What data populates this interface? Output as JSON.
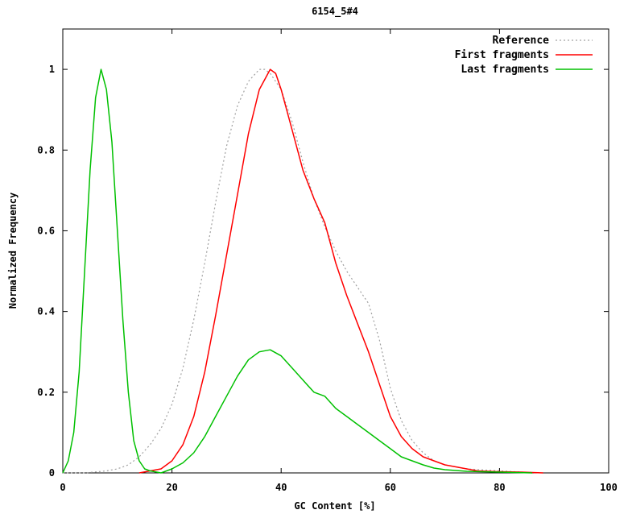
{
  "chart_data": {
    "type": "line",
    "title": "6154_5#4",
    "xlabel": "GC Content [%]",
    "ylabel": "Normalized Frequency",
    "xlim": [
      0,
      100
    ],
    "ylim": [
      0,
      1.1
    ],
    "x_ticks": [
      0,
      20,
      40,
      60,
      80,
      100
    ],
    "y_ticks": [
      0,
      0.2,
      0.4,
      0.6,
      0.8,
      1
    ],
    "x_tick_labels": [
      "0",
      "20",
      "40",
      "60",
      "80",
      "100"
    ],
    "y_tick_labels": [
      "0",
      "0.2",
      "0.4",
      "0.6",
      "0.8",
      "1"
    ],
    "grid": false,
    "legend_position": "top-right",
    "series": [
      {
        "name": "Reference",
        "color": "#a0a0a0",
        "style": "dotted",
        "x": [
          0,
          4,
          8,
          10,
          12,
          14,
          16,
          18,
          20,
          22,
          24,
          26,
          28,
          30,
          32,
          34,
          36,
          37,
          38,
          40,
          42,
          44,
          46,
          48,
          50,
          52,
          54,
          56,
          58,
          60,
          62,
          64,
          66,
          68,
          70,
          74,
          80,
          84,
          88
        ],
        "y": [
          0.0,
          0.0,
          0.005,
          0.01,
          0.02,
          0.04,
          0.07,
          0.11,
          0.17,
          0.26,
          0.38,
          0.52,
          0.67,
          0.81,
          0.91,
          0.97,
          1.0,
          1.0,
          0.99,
          0.95,
          0.87,
          0.77,
          0.68,
          0.61,
          0.55,
          0.5,
          0.46,
          0.42,
          0.33,
          0.21,
          0.13,
          0.08,
          0.05,
          0.03,
          0.02,
          0.01,
          0.005,
          0.002,
          0.0
        ]
      },
      {
        "name": "First fragments",
        "color": "#ff0000",
        "style": "solid",
        "x": [
          14,
          16,
          18,
          20,
          22,
          24,
          26,
          28,
          30,
          32,
          34,
          36,
          38,
          39,
          40,
          42,
          44,
          46,
          48,
          50,
          52,
          54,
          56,
          58,
          60,
          62,
          64,
          66,
          68,
          70,
          72,
          74,
          76,
          80,
          84,
          88
        ],
        "y": [
          0.0,
          0.005,
          0.01,
          0.03,
          0.07,
          0.14,
          0.25,
          0.39,
          0.54,
          0.69,
          0.84,
          0.95,
          1.0,
          0.99,
          0.95,
          0.85,
          0.75,
          0.68,
          0.62,
          0.52,
          0.44,
          0.37,
          0.3,
          0.22,
          0.14,
          0.09,
          0.06,
          0.04,
          0.03,
          0.02,
          0.015,
          0.01,
          0.005,
          0.003,
          0.002,
          0.0
        ]
      },
      {
        "name": "Last fragments",
        "color": "#00c000",
        "style": "solid",
        "x": [
          0,
          1,
          2,
          3,
          4,
          5,
          6,
          7,
          8,
          9,
          10,
          11,
          12,
          13,
          14,
          15,
          16,
          18,
          20,
          22,
          24,
          26,
          28,
          30,
          32,
          34,
          36,
          38,
          40,
          42,
          44,
          46,
          48,
          50,
          52,
          54,
          56,
          58,
          60,
          62,
          64,
          66,
          68,
          70,
          74,
          80,
          86
        ],
        "y": [
          0.0,
          0.03,
          0.1,
          0.25,
          0.5,
          0.75,
          0.93,
          1.0,
          0.95,
          0.82,
          0.6,
          0.38,
          0.2,
          0.08,
          0.03,
          0.01,
          0.005,
          0.0,
          0.01,
          0.025,
          0.05,
          0.09,
          0.14,
          0.19,
          0.24,
          0.28,
          0.3,
          0.305,
          0.29,
          0.26,
          0.23,
          0.2,
          0.19,
          0.16,
          0.14,
          0.12,
          0.1,
          0.08,
          0.06,
          0.04,
          0.03,
          0.02,
          0.012,
          0.008,
          0.004,
          0.002,
          0.0
        ]
      }
    ]
  }
}
